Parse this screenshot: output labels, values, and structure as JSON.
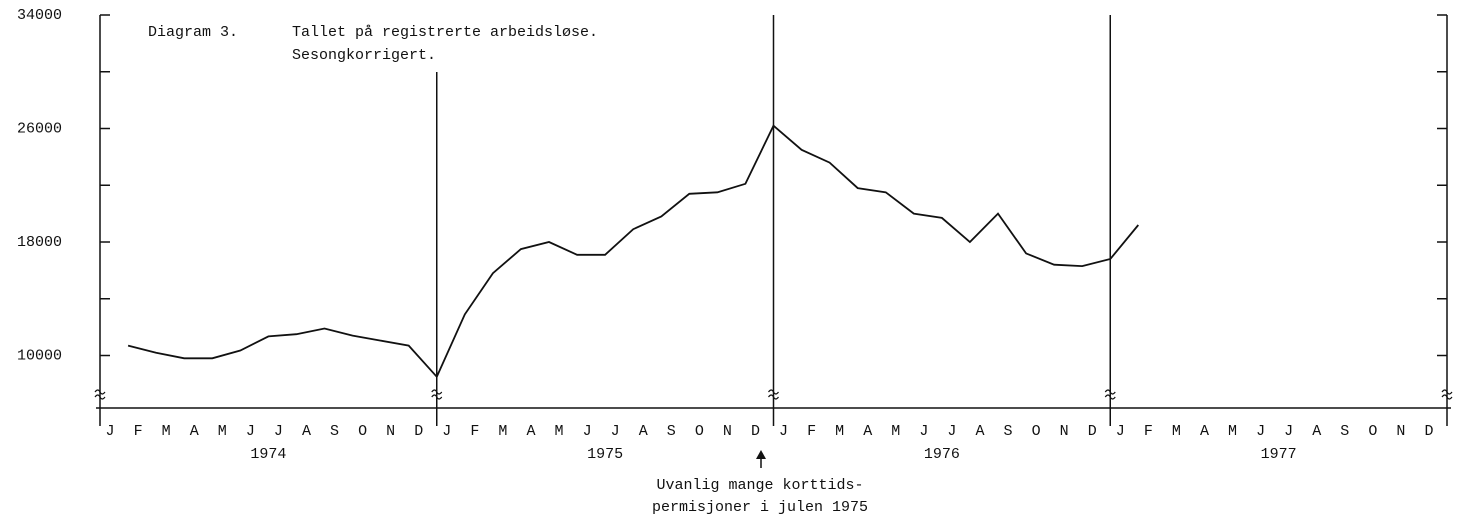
{
  "chart_data": {
    "type": "line",
    "title": "Diagram 3.",
    "subtitle": [
      "Tallet på registrerte arbeidsløse.",
      "Sesongkorrigert."
    ],
    "categories": [
      "J",
      "F",
      "M",
      "A",
      "M",
      "J",
      "J",
      "A",
      "S",
      "O",
      "N",
      "D",
      "J",
      "F",
      "M",
      "A",
      "M",
      "J",
      "J",
      "A",
      "S",
      "O",
      "N",
      "D",
      "J",
      "F",
      "M",
      "A",
      "M",
      "J",
      "J",
      "A",
      "S",
      "O",
      "N",
      "D",
      "J",
      "F",
      "M",
      "A",
      "M",
      "J",
      "J",
      "A",
      "S",
      "O",
      "N",
      "D"
    ],
    "years": [
      "1974",
      "1975",
      "1976",
      "1977"
    ],
    "series": [
      {
        "color": "#111111",
        "values": [
          10700,
          10200,
          9800,
          9800,
          10350,
          11350,
          11500,
          11900,
          11400,
          11050,
          10700,
          8500,
          12900,
          15800,
          17500,
          18000,
          17100,
          17100,
          18900,
          19800,
          21400,
          21500,
          22100,
          26200,
          24500,
          23600,
          21800,
          21500,
          20000,
          19700,
          18000,
          20000,
          17200,
          16400,
          16300,
          16800,
          19200,
          null,
          null,
          null,
          null,
          null,
          null,
          null,
          null,
          null,
          null,
          null
        ]
      }
    ],
    "ylim": [
      6300,
      34000
    ],
    "yticks": [
      10000,
      18000,
      26000,
      34000
    ],
    "minor_yticks": [
      14000,
      22000,
      30000
    ],
    "annotation": [
      "Uvanlig mange korttids-",
      "permisjoner i julen 1975"
    ]
  }
}
